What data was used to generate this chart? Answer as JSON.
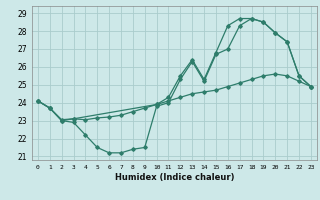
{
  "title": "",
  "xlabel": "Humidex (Indice chaleur)",
  "xlim": [
    -0.5,
    23.5
  ],
  "ylim": [
    20.8,
    29.4
  ],
  "yticks": [
    21,
    22,
    23,
    24,
    25,
    26,
    27,
    28,
    29
  ],
  "xticks": [
    0,
    1,
    2,
    3,
    4,
    5,
    6,
    7,
    8,
    9,
    10,
    11,
    12,
    13,
    14,
    15,
    16,
    17,
    18,
    19,
    20,
    21,
    22,
    23
  ],
  "bg_color": "#cde8e8",
  "grid_color": "#aacccc",
  "line_color": "#2e7d6b",
  "curve1_x": [
    0,
    1,
    2,
    3,
    4,
    5,
    6,
    7,
    8,
    9,
    10,
    11,
    12,
    13,
    14,
    15,
    16,
    17,
    18,
    19,
    20,
    21,
    22,
    23
  ],
  "curve1_y": [
    24.1,
    23.7,
    23.0,
    22.9,
    22.2,
    21.5,
    21.2,
    21.2,
    21.4,
    21.5,
    23.8,
    24.0,
    25.3,
    26.3,
    25.2,
    26.7,
    27.0,
    28.3,
    28.7,
    28.5,
    27.9,
    27.4,
    25.5,
    24.9
  ],
  "curve2_x": [
    0,
    1,
    2,
    3,
    4,
    5,
    6,
    7,
    8,
    9,
    10,
    11,
    12,
    13,
    14,
    15,
    16,
    17,
    18,
    19,
    20,
    21,
    22,
    23
  ],
  "curve2_y": [
    24.1,
    23.7,
    23.05,
    23.1,
    23.05,
    23.15,
    23.2,
    23.3,
    23.5,
    23.7,
    23.9,
    24.1,
    24.3,
    24.5,
    24.6,
    24.7,
    24.9,
    25.1,
    25.3,
    25.5,
    25.6,
    25.5,
    25.2,
    24.9
  ],
  "curve3_x": [
    0,
    1,
    2,
    3,
    10,
    11,
    12,
    13,
    14,
    15,
    16,
    17,
    18,
    19,
    20,
    21,
    22,
    23
  ],
  "curve3_y": [
    24.1,
    23.7,
    23.0,
    23.1,
    23.9,
    24.3,
    25.5,
    26.4,
    25.3,
    26.8,
    28.3,
    28.7,
    28.7,
    28.5,
    27.9,
    27.4,
    25.5,
    24.9
  ]
}
